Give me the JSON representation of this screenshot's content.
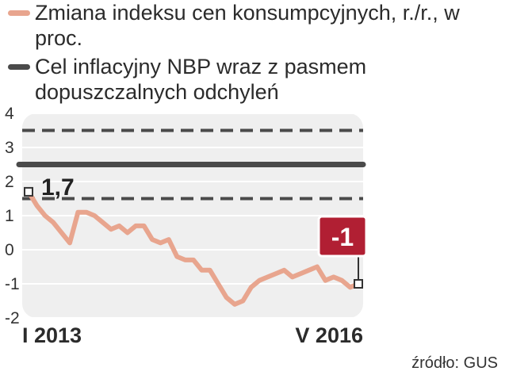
{
  "legend": [
    {
      "label": "Zmiana indeksu cen konsumpcyjnych, r./r., w proc.",
      "color": "#e8a58e"
    },
    {
      "label": "Cel inflacyjny NBP wraz z pasmem dopuszczalnych odchyleń",
      "color": "#4a4a4a"
    }
  ],
  "source": "źródło: GUS",
  "chart_data": {
    "type": "line",
    "ylim": [
      -2,
      4
    ],
    "yticks": [
      "4",
      "3",
      "2",
      "1",
      "0",
      "-1",
      "-2"
    ],
    "x_start_label": "I 2013",
    "x_end_label": "V 2016",
    "series": [
      {
        "color": "#e8a58e",
        "values": [
          1.7,
          1.3,
          1.0,
          0.8,
          0.5,
          0.2,
          1.1,
          1.1,
          1.0,
          0.8,
          0.6,
          0.7,
          0.5,
          0.7,
          0.7,
          0.3,
          0.2,
          0.3,
          -0.2,
          -0.3,
          -0.3,
          -0.6,
          -0.6,
          -1.0,
          -1.4,
          -1.6,
          -1.5,
          -1.1,
          -0.9,
          -0.8,
          -0.7,
          -0.6,
          -0.8,
          -0.7,
          -0.6,
          -0.5,
          -0.9,
          -0.8,
          -0.9,
          -1.1,
          -1.0
        ]
      }
    ],
    "target": 2.5,
    "band": [
      1.5,
      3.5
    ],
    "first_label": "1,7",
    "last_label": "-1",
    "callout_color": "#b11f33"
  }
}
